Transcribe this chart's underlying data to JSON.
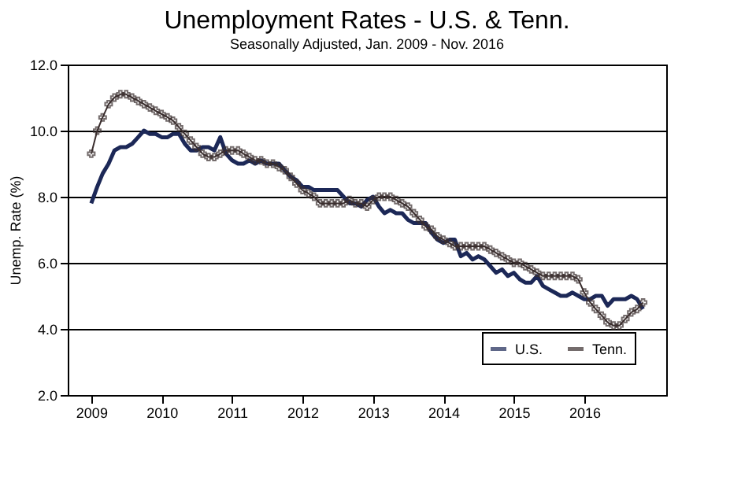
{
  "chart_data": {
    "type": "line",
    "title": "Unemployment Rates - U.S. & Tenn.",
    "subtitle": "Seasonally Adjusted, Jan. 2009 - Nov. 2016",
    "ylabel": "Unemp. Rate (%)",
    "x": [
      "2009-01",
      "2009-02",
      "2009-03",
      "2009-04",
      "2009-05",
      "2009-06",
      "2009-07",
      "2009-08",
      "2009-09",
      "2009-10",
      "2009-11",
      "2009-12",
      "2010-01",
      "2010-02",
      "2010-03",
      "2010-04",
      "2010-05",
      "2010-06",
      "2010-07",
      "2010-08",
      "2010-09",
      "2010-10",
      "2010-11",
      "2010-12",
      "2011-01",
      "2011-02",
      "2011-03",
      "2011-04",
      "2011-05",
      "2011-06",
      "2011-07",
      "2011-08",
      "2011-09",
      "2011-10",
      "2011-11",
      "2011-12",
      "2012-01",
      "2012-02",
      "2012-03",
      "2012-04",
      "2012-05",
      "2012-06",
      "2012-07",
      "2012-08",
      "2012-09",
      "2012-10",
      "2012-11",
      "2012-12",
      "2013-01",
      "2013-02",
      "2013-03",
      "2013-04",
      "2013-05",
      "2013-06",
      "2013-07",
      "2013-08",
      "2013-09",
      "2013-10",
      "2013-11",
      "2013-12",
      "2014-01",
      "2014-02",
      "2014-03",
      "2014-04",
      "2014-05",
      "2014-06",
      "2014-07",
      "2014-08",
      "2014-09",
      "2014-10",
      "2014-11",
      "2014-12",
      "2015-01",
      "2015-02",
      "2015-03",
      "2015-04",
      "2015-05",
      "2015-06",
      "2015-07",
      "2015-08",
      "2015-09",
      "2015-10",
      "2015-11",
      "2015-12",
      "2016-01",
      "2016-02",
      "2016-03",
      "2016-04",
      "2016-05",
      "2016-06",
      "2016-07",
      "2016-08",
      "2016-09",
      "2016-10",
      "2016-11"
    ],
    "series": [
      {
        "name": "U.S.",
        "color": "#1c2857",
        "marker": "none",
        "values": [
          7.8,
          8.3,
          8.7,
          9.0,
          9.4,
          9.5,
          9.5,
          9.6,
          9.8,
          10.0,
          9.9,
          9.9,
          9.8,
          9.8,
          9.9,
          9.9,
          9.6,
          9.4,
          9.4,
          9.5,
          9.5,
          9.4,
          9.8,
          9.3,
          9.1,
          9.0,
          9.0,
          9.1,
          9.0,
          9.1,
          9.0,
          9.0,
          9.0,
          8.8,
          8.6,
          8.5,
          8.3,
          8.3,
          8.2,
          8.2,
          8.2,
          8.2,
          8.2,
          8.0,
          7.8,
          7.8,
          7.7,
          7.9,
          8.0,
          7.7,
          7.5,
          7.6,
          7.5,
          7.5,
          7.3,
          7.2,
          7.2,
          7.2,
          6.9,
          6.7,
          6.6,
          6.7,
          6.7,
          6.2,
          6.3,
          6.1,
          6.2,
          6.1,
          5.9,
          5.7,
          5.8,
          5.6,
          5.7,
          5.5,
          5.4,
          5.4,
          5.6,
          5.3,
          5.2,
          5.1,
          5.0,
          5.0,
          5.1,
          5.0,
          4.9,
          4.9,
          5.0,
          5.0,
          4.7,
          4.9,
          4.9,
          4.9,
          5.0,
          4.9,
          4.6
        ]
      },
      {
        "name": "Tenn.",
        "color": "#3a2e2e",
        "marker": "cross",
        "values": [
          9.3,
          10.0,
          10.4,
          10.8,
          11.0,
          11.1,
          11.1,
          11.0,
          10.9,
          10.8,
          10.7,
          10.6,
          10.5,
          10.4,
          10.3,
          10.1,
          9.9,
          9.7,
          9.5,
          9.3,
          9.2,
          9.2,
          9.3,
          9.4,
          9.4,
          9.4,
          9.3,
          9.2,
          9.1,
          9.1,
          9.0,
          9.0,
          8.9,
          8.8,
          8.6,
          8.4,
          8.2,
          8.1,
          8.0,
          7.8,
          7.8,
          7.8,
          7.8,
          7.8,
          7.9,
          7.8,
          7.8,
          7.7,
          7.9,
          8.0,
          8.0,
          8.0,
          7.9,
          7.8,
          7.7,
          7.5,
          7.3,
          7.1,
          7.0,
          6.8,
          6.7,
          6.6,
          6.5,
          6.5,
          6.5,
          6.5,
          6.5,
          6.5,
          6.4,
          6.3,
          6.2,
          6.1,
          6.0,
          6.0,
          5.9,
          5.8,
          5.7,
          5.6,
          5.6,
          5.6,
          5.6,
          5.6,
          5.6,
          5.5,
          5.1,
          4.8,
          4.6,
          4.4,
          4.2,
          4.1,
          4.1,
          4.3,
          4.5,
          4.6,
          4.8
        ]
      }
    ],
    "xlim": [
      "2008-09",
      "2017-03"
    ],
    "xticks": [
      "2009",
      "2010",
      "2011",
      "2012",
      "2013",
      "2014",
      "2015",
      "2016"
    ],
    "ylim": [
      2,
      12
    ],
    "yticks": [
      {
        "value": 2,
        "label": "2.0"
      },
      {
        "value": 4,
        "label": "4.0"
      },
      {
        "value": 6,
        "label": "6.0"
      },
      {
        "value": 8,
        "label": "8.0"
      },
      {
        "value": 10,
        "label": "10.0"
      },
      {
        "value": 12,
        "label": "12.0"
      }
    ],
    "grid": "y",
    "legend": "bottom right",
    "line_style": "solid"
  }
}
